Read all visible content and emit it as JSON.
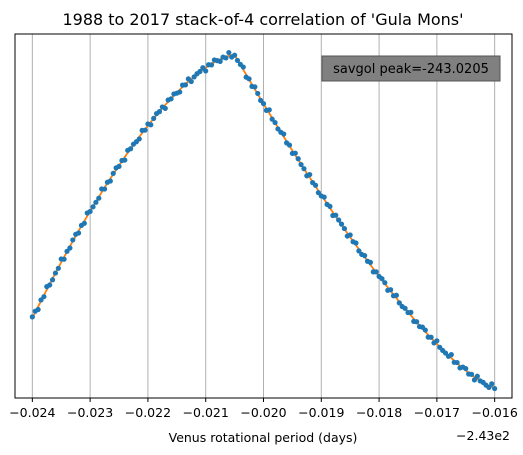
{
  "chart_data": {
    "type": "scatter",
    "title": "1988 to 2017 stack-of-4 correlation of 'Gula Mons'",
    "xlabel": "Venus rotational period (days)",
    "ylabel": "",
    "x_offset_label": "−2.43e2",
    "xlim": [
      -0.0243,
      -0.0157
    ],
    "ylim": [
      -0.03,
      1.02
    ],
    "x_ticks": [
      -0.024,
      -0.023,
      -0.022,
      -0.021,
      -0.02,
      -0.019,
      -0.018,
      -0.017,
      -0.016
    ],
    "x_tick_labels": [
      "−0.024",
      "−0.023",
      "−0.022",
      "−0.021",
      "−0.020",
      "−0.019",
      "−0.018",
      "−0.017",
      "−0.016"
    ],
    "y_ticks_visible": false,
    "grid": "vertical",
    "annotation": {
      "text": "savgol peak=-243.0205",
      "placement": "top-right"
    },
    "series": [
      {
        "kind": "points",
        "color": "#1f77b4",
        "x_start": -0.024,
        "x_end": -0.016,
        "count": 161
      },
      {
        "kind": "smoothed-line",
        "color": "#ff7f0e",
        "x_start": -0.024,
        "x_end": -0.016
      }
    ],
    "shape": {
      "peak_x": -0.0205,
      "peak_y": 0.96,
      "start_y": 0.2,
      "end_y": 0.0,
      "note_values": "y is unscaled correlation; axis values hidden"
    },
    "colors": {
      "points": "#1f77b4",
      "line": "#ff7f0e",
      "grid": "#b0b0b0",
      "annotation_bg": "#808080"
    }
  }
}
